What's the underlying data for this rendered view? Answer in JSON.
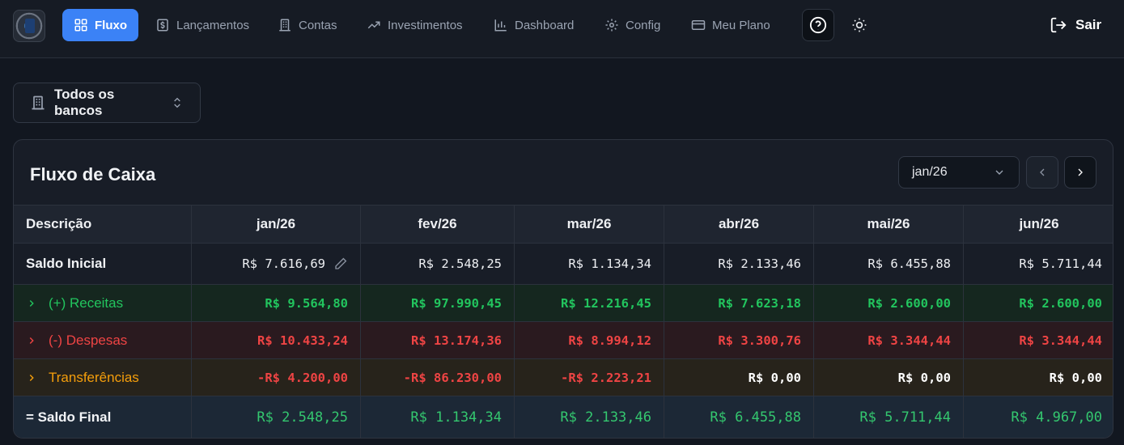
{
  "nav": {
    "items": [
      {
        "label": "Fluxo",
        "icon": "dashboard-grid-icon",
        "active": true
      },
      {
        "label": "Lançamentos",
        "icon": "dollar-document-icon",
        "active": false
      },
      {
        "label": "Contas",
        "icon": "building-icon",
        "active": false
      },
      {
        "label": "Investimentos",
        "icon": "trending-up-icon",
        "active": false
      },
      {
        "label": "Dashboard",
        "icon": "bar-chart-icon",
        "active": false
      },
      {
        "label": "Config",
        "icon": "gear-icon",
        "active": false
      },
      {
        "label": "Meu Plano",
        "icon": "credit-card-icon",
        "active": false
      }
    ],
    "help_icon": "help-circle-icon",
    "theme_icon": "sun-icon",
    "logout_label": "Sair",
    "logout_icon": "logout-icon",
    "active_color": "#3b82f6"
  },
  "bank_filter": {
    "label": "Todos os bancos",
    "icon": "building-icon"
  },
  "cash_flow": {
    "title": "Fluxo de Caixa",
    "month_selected": "jan/26",
    "header": [
      "Descrição",
      "jan/26",
      "fev/26",
      "mar/26",
      "abr/26",
      "mai/26",
      "jun/26"
    ],
    "rows": {
      "saldo_inicial": {
        "label": "Saldo Inicial",
        "values": [
          "R$ 7.616,69",
          "R$ 2.548,25",
          "R$ 1.134,34",
          "R$ 2.133,46",
          "R$ 6.455,88",
          "R$ 5.711,44"
        ]
      },
      "receitas": {
        "label": "(+) Receitas",
        "values": [
          "R$ 9.564,80",
          "R$ 97.990,45",
          "R$ 12.216,45",
          "R$ 7.623,18",
          "R$ 2.600,00",
          "R$ 2.600,00"
        ]
      },
      "despesas": {
        "label": "(-) Despesas",
        "values": [
          "R$ 10.433,24",
          "R$ 13.174,36",
          "R$ 8.994,12",
          "R$ 3.300,76",
          "R$ 3.344,44",
          "R$ 3.344,44"
        ]
      },
      "transferencias": {
        "label": "Transferências",
        "values": [
          "-R$ 4.200,00",
          "-R$ 86.230,00",
          "-R$ 2.223,21",
          "R$ 0,00",
          "R$ 0,00",
          "R$ 0,00"
        ]
      },
      "saldo_final": {
        "label": "= Saldo Final",
        "values": [
          "R$ 2.548,25",
          "R$ 1.134,34",
          "R$ 2.133,46",
          "R$ 6.455,88",
          "R$ 5.711,44",
          "R$ 4.967,00"
        ]
      }
    },
    "colors": {
      "income": "#22c55e",
      "expense": "#ef4444",
      "transfer": "#f59e0b"
    }
  }
}
